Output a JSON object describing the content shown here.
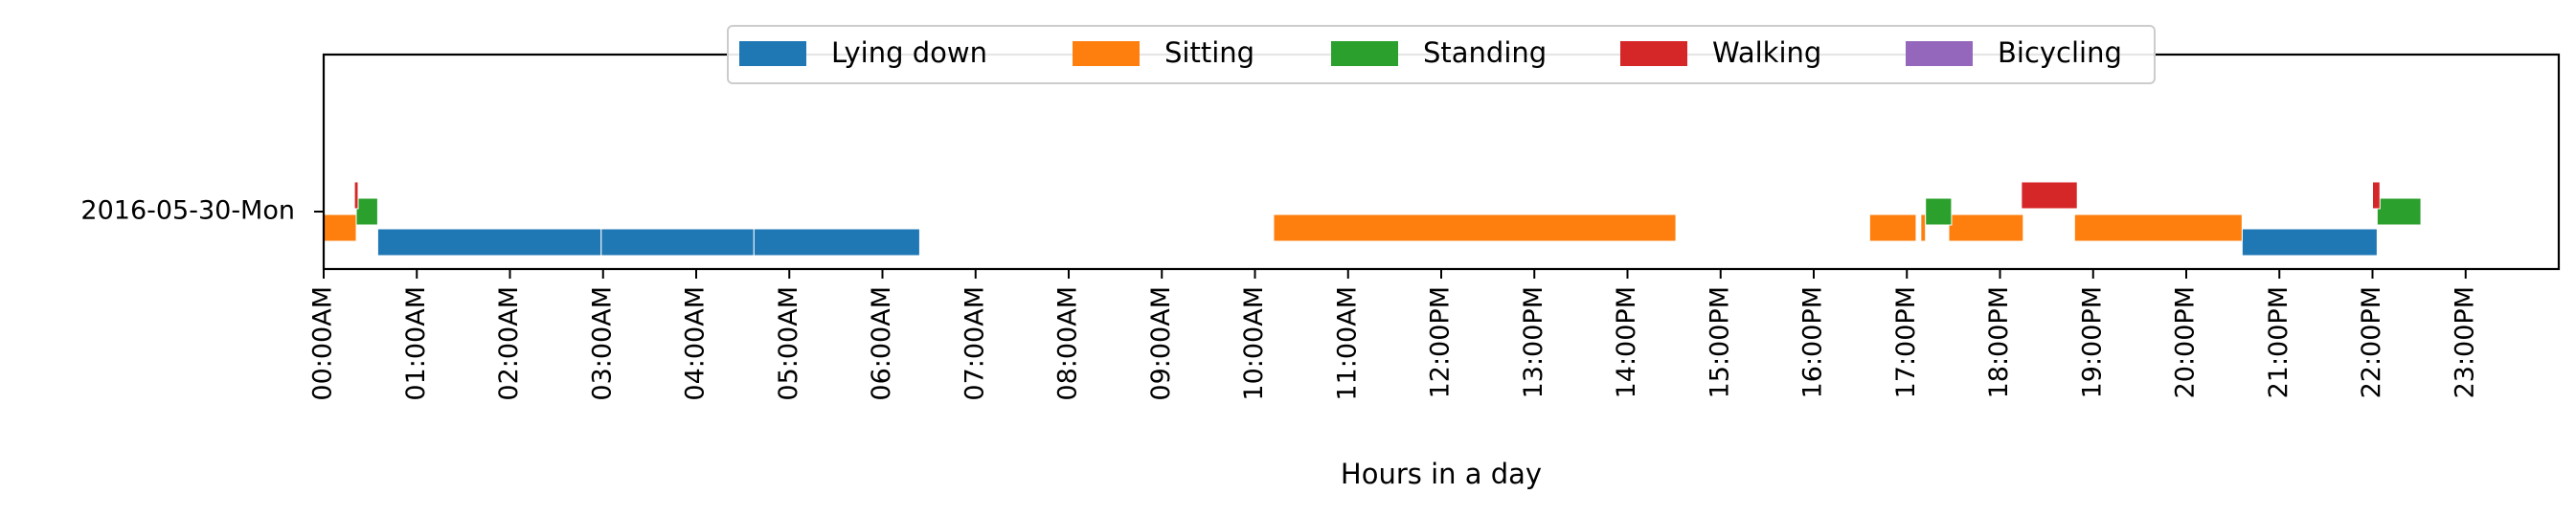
{
  "chart_data": {
    "type": "gantt",
    "xlabel": "Hours in a day",
    "ylabel": "",
    "xlim": [
      0,
      24
    ],
    "categories": [
      "2016-05-30-Mon"
    ],
    "x_ticks": [
      {
        "value": 0,
        "label": "00:00AM"
      },
      {
        "value": 1,
        "label": "01:00AM"
      },
      {
        "value": 2,
        "label": "02:00AM"
      },
      {
        "value": 3,
        "label": "03:00AM"
      },
      {
        "value": 4,
        "label": "04:00AM"
      },
      {
        "value": 5,
        "label": "05:00AM"
      },
      {
        "value": 6,
        "label": "06:00AM"
      },
      {
        "value": 7,
        "label": "07:00AM"
      },
      {
        "value": 8,
        "label": "08:00AM"
      },
      {
        "value": 9,
        "label": "09:00AM"
      },
      {
        "value": 10,
        "label": "10:00AM"
      },
      {
        "value": 11,
        "label": "11:00AM"
      },
      {
        "value": 12,
        "label": "12:00PM"
      },
      {
        "value": 13,
        "label": "13:00PM"
      },
      {
        "value": 14,
        "label": "14:00PM"
      },
      {
        "value": 15,
        "label": "15:00PM"
      },
      {
        "value": 16,
        "label": "16:00PM"
      },
      {
        "value": 17,
        "label": "17:00PM"
      },
      {
        "value": 18,
        "label": "18:00PM"
      },
      {
        "value": 19,
        "label": "19:00PM"
      },
      {
        "value": 20,
        "label": "20:00PM"
      },
      {
        "value": 21,
        "label": "21:00PM"
      },
      {
        "value": 22,
        "label": "22:00PM"
      },
      {
        "value": 23,
        "label": "23:00PM"
      }
    ],
    "legend_position": "top-center",
    "grid": false,
    "series": [
      {
        "name": "Lying down",
        "color": "#1f77b4",
        "segments": [
          [
            0.58,
            2.98
          ],
          [
            2.98,
            4.62
          ],
          [
            4.62,
            6.4
          ],
          [
            20.6,
            22.05
          ]
        ]
      },
      {
        "name": "Sitting",
        "color": "#ff7f0e",
        "segments": [
          [
            0.0,
            0.35
          ],
          [
            10.2,
            14.52
          ],
          [
            16.6,
            17.1
          ],
          [
            17.15,
            17.2
          ],
          [
            17.45,
            18.25
          ],
          [
            18.8,
            20.6
          ]
        ]
      },
      {
        "name": "Standing",
        "color": "#2ca02c",
        "segments": [
          [
            0.35,
            0.58
          ],
          [
            17.2,
            17.48
          ],
          [
            22.05,
            22.52
          ]
        ]
      },
      {
        "name": "Walking",
        "color": "#d62728",
        "segments": [
          [
            0.33,
            0.37
          ],
          [
            18.23,
            18.83
          ],
          [
            22.0,
            22.08
          ]
        ]
      },
      {
        "name": "Bicycling",
        "color": "#9467bd",
        "segments": []
      }
    ]
  }
}
